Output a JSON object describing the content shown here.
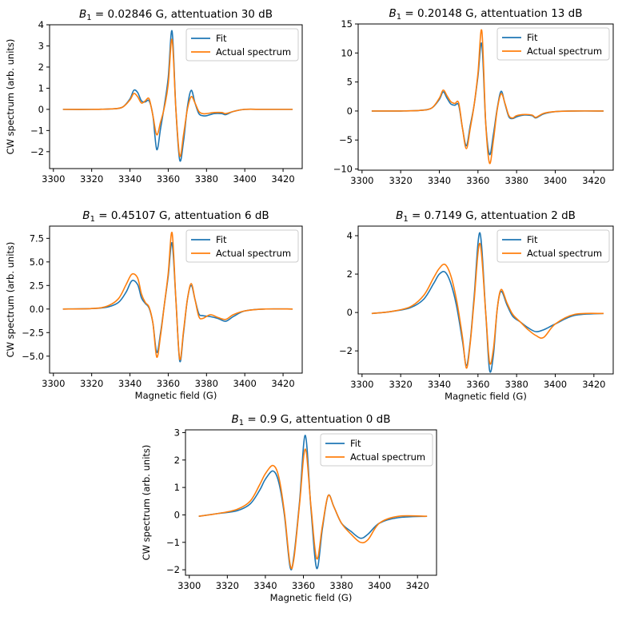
{
  "figure": {
    "rows": 3,
    "cols": 2
  },
  "colors": {
    "fit": "#1f77b4",
    "actual": "#ff7f0e",
    "axis": "#000000"
  },
  "chart_data": [
    {
      "type": "line",
      "title": "B₁ = 0.02846 G, attentuation 30 dB",
      "title_symbol": "B",
      "title_subscript": "1",
      "title_rest": " = 0.02846 G, attentuation 30 dB",
      "xlabel": "",
      "ylabel": "CW spectrum (arb. units)",
      "xlim": [
        3298,
        3430
      ],
      "ylim": [
        -2.8,
        4
      ],
      "xticks": [
        3300,
        3320,
        3340,
        3360,
        3380,
        3400,
        3420
      ],
      "yticks": [
        -2,
        -1,
        0,
        1,
        2,
        3,
        4
      ],
      "ytick_labels": [
        "−2",
        "−1",
        "0",
        "1",
        "2",
        "3",
        "4"
      ],
      "legend": "top-right",
      "series": [
        {
          "name": "Fit",
          "x": [
            3305,
            3320,
            3330,
            3336,
            3340,
            3342,
            3344,
            3346,
            3348,
            3350,
            3352,
            3354,
            3356,
            3358,
            3360,
            3362,
            3364,
            3366,
            3368,
            3370,
            3372,
            3374,
            3376,
            3378,
            3380,
            3384,
            3388,
            3390,
            3394,
            3400,
            3410,
            3425
          ],
          "y": [
            0,
            0,
            0.02,
            0.1,
            0.5,
            0.9,
            0.8,
            0.4,
            0.35,
            0.4,
            -0.3,
            -1.9,
            -0.9,
            0.2,
            1.5,
            3.7,
            0,
            -2.4,
            -1.5,
            0.1,
            0.9,
            0.3,
            -0.2,
            -0.3,
            -0.3,
            -0.2,
            -0.2,
            -0.25,
            -0.1,
            0,
            0,
            0
          ]
        },
        {
          "name": "Actual spectrum",
          "x": [
            3305,
            3320,
            3330,
            3336,
            3340,
            3342,
            3344,
            3346,
            3348,
            3350,
            3352,
            3354,
            3356,
            3358,
            3360,
            3362,
            3364,
            3366,
            3368,
            3370,
            3372,
            3374,
            3376,
            3378,
            3380,
            3384,
            3388,
            3390,
            3394,
            3400,
            3410,
            3425
          ],
          "y": [
            0,
            0,
            0.02,
            0.1,
            0.45,
            0.75,
            0.6,
            0.3,
            0.4,
            0.5,
            -0.3,
            -1.2,
            -0.6,
            0.1,
            1.2,
            3.3,
            0,
            -2.2,
            -1.2,
            0,
            0.6,
            0.3,
            -0.1,
            -0.2,
            -0.2,
            -0.15,
            -0.15,
            -0.2,
            -0.1,
            0,
            0,
            0
          ]
        }
      ]
    },
    {
      "type": "line",
      "title": "B₁ = 0.20148 G, attentuation 13 dB",
      "title_symbol": "B",
      "title_subscript": "1",
      "title_rest": " = 0.20148 G, attentuation 13 dB",
      "xlabel": "",
      "ylabel": "",
      "xlim": [
        3298,
        3430
      ],
      "ylim": [
        -10.2,
        15
      ],
      "xticks": [
        3300,
        3320,
        3340,
        3360,
        3380,
        3400,
        3420
      ],
      "yticks": [
        -10,
        -5,
        0,
        5,
        10,
        15
      ],
      "ytick_labels": [
        "−10",
        "−5",
        "0",
        "5",
        "10",
        "15"
      ],
      "legend": "top-right",
      "series": [
        {
          "name": "Fit",
          "x": [
            3305,
            3320,
            3330,
            3336,
            3340,
            3342,
            3344,
            3346,
            3348,
            3350,
            3352,
            3354,
            3356,
            3358,
            3360,
            3362,
            3364,
            3366,
            3368,
            3370,
            3372,
            3374,
            3376,
            3378,
            3380,
            3384,
            3388,
            3390,
            3394,
            3400,
            3410,
            3425
          ],
          "y": [
            0,
            0,
            0.1,
            0.5,
            2,
            3.3,
            2.2,
            1.2,
            1.0,
            1.0,
            -3,
            -6,
            -2.5,
            1,
            6,
            11.5,
            -2,
            -7.5,
            -4,
            0.5,
            3.4,
            1.2,
            -1,
            -1.3,
            -1,
            -0.7,
            -0.8,
            -1.2,
            -0.5,
            -0.1,
            0,
            0
          ]
        },
        {
          "name": "Actual spectrum",
          "x": [
            3305,
            3320,
            3330,
            3336,
            3340,
            3342,
            3344,
            3346,
            3348,
            3350,
            3352,
            3354,
            3356,
            3358,
            3360,
            3362,
            3364,
            3366,
            3368,
            3370,
            3372,
            3374,
            3376,
            3378,
            3380,
            3384,
            3388,
            3390,
            3394,
            3400,
            3410,
            3425
          ],
          "y": [
            0,
            0,
            0.1,
            0.5,
            2.2,
            3.6,
            2.6,
            1.6,
            1.3,
            1.4,
            -3,
            -6.5,
            -3,
            1,
            6.5,
            13.8,
            -2,
            -9,
            -5,
            0.3,
            3,
            1.3,
            -0.8,
            -1.2,
            -0.8,
            -0.6,
            -0.7,
            -1.1,
            -0.4,
            -0.1,
            0,
            0
          ]
        }
      ]
    },
    {
      "type": "line",
      "title": "B₁ = 0.45107 G, attentuation 6 dB",
      "title_symbol": "B",
      "title_subscript": "1",
      "title_rest": " = 0.45107 G, attentuation 6 dB",
      "xlabel": "Magnetic field (G)",
      "ylabel": "CW spectrum (arb. units)",
      "xlim": [
        3298,
        3430
      ],
      "ylim": [
        -6.8,
        8.8
      ],
      "xticks": [
        3300,
        3320,
        3340,
        3360,
        3380,
        3400,
        3420
      ],
      "yticks": [
        -5,
        -2.5,
        0,
        2.5,
        5,
        7.5
      ],
      "ytick_labels": [
        "−5.0",
        "−2.5",
        "0.0",
        "2.5",
        "5.0",
        "7.5"
      ],
      "legend": "top-right",
      "series": [
        {
          "name": "Fit",
          "x": [
            3305,
            3320,
            3328,
            3334,
            3338,
            3341,
            3344,
            3346,
            3348,
            3350,
            3352,
            3354,
            3356,
            3358,
            3360,
            3362,
            3364,
            3366,
            3368,
            3370,
            3372,
            3374,
            3376,
            3378,
            3382,
            3386,
            3390,
            3394,
            3400,
            3410,
            3425
          ],
          "y": [
            0,
            0.05,
            0.2,
            0.7,
            1.8,
            3.0,
            2.6,
            1.2,
            0.6,
            0.1,
            -1.5,
            -4.6,
            -2.5,
            0.5,
            3.5,
            7,
            1,
            -5.5,
            -2.5,
            1,
            2.5,
            1,
            -0.5,
            -0.7,
            -0.8,
            -1,
            -1.3,
            -0.8,
            -0.2,
            0,
            0
          ]
        },
        {
          "name": "Actual spectrum",
          "x": [
            3305,
            3320,
            3328,
            3334,
            3338,
            3341,
            3344,
            3346,
            3348,
            3350,
            3352,
            3354,
            3356,
            3358,
            3360,
            3362,
            3364,
            3366,
            3368,
            3370,
            3372,
            3374,
            3376,
            3378,
            3382,
            3386,
            3390,
            3394,
            3400,
            3410,
            3425
          ],
          "y": [
            0,
            0.05,
            0.3,
            1.1,
            2.6,
            3.7,
            3.3,
            1.6,
            0.7,
            0.2,
            -1.5,
            -5.1,
            -2.8,
            0.5,
            3.8,
            8.1,
            1,
            -5.3,
            -2.3,
            1,
            2.7,
            1,
            -0.8,
            -1.0,
            -0.6,
            -0.9,
            -1.1,
            -0.6,
            -0.2,
            0,
            0
          ]
        }
      ]
    },
    {
      "type": "line",
      "title": "B₁ = 0.7149 G, attentuation 2 dB",
      "title_symbol": "B",
      "title_subscript": "1",
      "title_rest": " = 0.7149 G, attentuation 2 dB",
      "xlabel": "Magnetic field (G)",
      "ylabel": "",
      "xlim": [
        3298,
        3430
      ],
      "ylim": [
        -3.2,
        4.5
      ],
      "xticks": [
        3300,
        3320,
        3340,
        3360,
        3380,
        3400,
        3420
      ],
      "yticks": [
        -2,
        0,
        2,
        4
      ],
      "ytick_labels": [
        "−2",
        "0",
        "2",
        "4"
      ],
      "legend": "top-right",
      "series": [
        {
          "name": "Fit",
          "x": [
            3305,
            3315,
            3325,
            3332,
            3337,
            3340,
            3343,
            3346,
            3349,
            3352,
            3354,
            3356,
            3358,
            3361,
            3364,
            3366,
            3368,
            3370,
            3372,
            3375,
            3378,
            3382,
            3386,
            3390,
            3394,
            3400,
            3410,
            3425
          ],
          "y": [
            -0.05,
            0.05,
            0.25,
            0.7,
            1.5,
            2.0,
            2.1,
            1.5,
            0.3,
            -1.5,
            -2.75,
            -1.5,
            0.8,
            4.15,
            0,
            -3.0,
            -2.2,
            0.2,
            1.1,
            0.4,
            -0.2,
            -0.5,
            -0.8,
            -1.0,
            -0.9,
            -0.6,
            -0.15,
            -0.05
          ]
        },
        {
          "name": "Actual spectrum",
          "x": [
            3305,
            3315,
            3325,
            3332,
            3337,
            3340,
            3343,
            3346,
            3349,
            3352,
            3354,
            3356,
            3358,
            3361,
            3364,
            3366,
            3368,
            3370,
            3372,
            3375,
            3378,
            3382,
            3386,
            3390,
            3394,
            3400,
            3410,
            3425
          ],
          "y": [
            -0.05,
            0.05,
            0.3,
            0.9,
            1.8,
            2.3,
            2.5,
            1.9,
            0.6,
            -1.3,
            -2.9,
            -1.6,
            0.6,
            3.6,
            0,
            -2.6,
            -1.9,
            0.2,
            1.2,
            0.5,
            -0.1,
            -0.5,
            -0.9,
            -1.2,
            -1.3,
            -0.6,
            -0.1,
            -0.05
          ]
        }
      ]
    },
    {
      "type": "line",
      "title": "B₁ = 0.9 G, attentuation 0 dB",
      "title_symbol": "B",
      "title_subscript": "1",
      "title_rest": " = 0.9 G, attentuation 0 dB",
      "xlabel": "Magnetic field (G)",
      "ylabel": "CW spectrum (arb. units)",
      "xlim": [
        3298,
        3430
      ],
      "ylim": [
        -2.2,
        3.1
      ],
      "xticks": [
        3300,
        3320,
        3340,
        3360,
        3380,
        3400,
        3420
      ],
      "yticks": [
        -2,
        -1,
        0,
        1,
        2,
        3
      ],
      "ytick_labels": [
        "−2",
        "−1",
        "0",
        "1",
        "2",
        "3"
      ],
      "legend": "top-right",
      "series": [
        {
          "name": "Fit",
          "x": [
            3305,
            3315,
            3325,
            3332,
            3337,
            3340,
            3344,
            3347,
            3350,
            3353,
            3355,
            3358,
            3361,
            3364,
            3367,
            3370,
            3373,
            3376,
            3380,
            3385,
            3390,
            3394,
            3400,
            3410,
            3425
          ],
          "y": [
            -0.05,
            0.05,
            0.15,
            0.4,
            0.9,
            1.3,
            1.6,
            1.2,
            0,
            -1.9,
            -1.5,
            0.5,
            2.9,
            0.2,
            -1.95,
            -0.5,
            0.7,
            0.3,
            -0.3,
            -0.6,
            -0.85,
            -0.7,
            -0.3,
            -0.1,
            -0.05
          ]
        },
        {
          "name": "Actual spectrum",
          "x": [
            3305,
            3315,
            3325,
            3332,
            3337,
            3340,
            3344,
            3347,
            3350,
            3353,
            3355,
            3358,
            3361,
            3364,
            3367,
            3370,
            3373,
            3376,
            3380,
            3385,
            3390,
            3394,
            3400,
            3410,
            3425
          ],
          "y": [
            -0.05,
            0.05,
            0.2,
            0.5,
            1.1,
            1.5,
            1.8,
            1.4,
            0.1,
            -1.8,
            -1.6,
            0.4,
            2.4,
            0.3,
            -1.6,
            -0.4,
            0.7,
            0.3,
            -0.3,
            -0.7,
            -1.0,
            -0.9,
            -0.3,
            -0.05,
            -0.05
          ]
        }
      ]
    }
  ]
}
